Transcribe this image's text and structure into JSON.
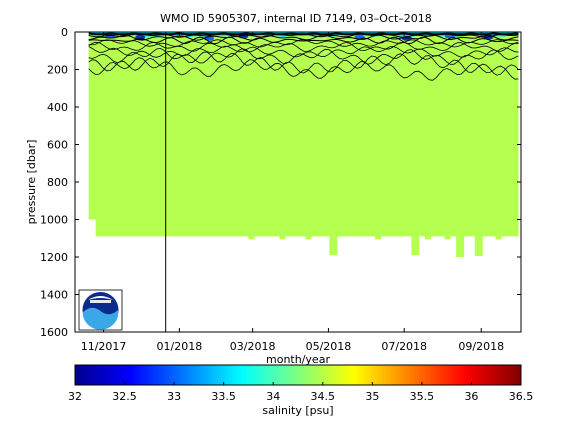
{
  "chart_data": {
    "type": "heatmap",
    "title": "WMO ID 5905307, internal ID 7149, 03–Oct–2018",
    "xlabel": "month/year",
    "ylabel": "pressure [dbar]",
    "x_tick_labels": [
      "11/2017",
      "01/2018",
      "03/2018",
      "05/2018",
      "07/2018",
      "09/2018"
    ],
    "x_tick_dates": [
      "2017-11-01",
      "2018-01-01",
      "2018-03-01",
      "2018-05-01",
      "2018-07-01",
      "2018-09-01"
    ],
    "xlim": [
      "2017-10-09",
      "2018-10-03"
    ],
    "ylim": [
      0,
      1600
    ],
    "y_reversed": true,
    "y_ticks": [
      0,
      200,
      400,
      600,
      800,
      1000,
      1200,
      1400,
      1600
    ],
    "marker_line_date": "2017-12-21",
    "colorbar": {
      "label": "salinity [psu]",
      "range": [
        32,
        36.5
      ],
      "ticks": [
        32,
        32.5,
        33,
        33.5,
        34,
        34.5,
        35,
        35.5,
        36,
        36.5
      ],
      "tick_labels": [
        "32",
        "32.5",
        "33",
        "33.5",
        "34",
        "34.5",
        "35",
        "35.5",
        "36",
        "36.5"
      ],
      "colormap": "jet"
    },
    "fill": {
      "deep_salinity": 34.6,
      "surface_salinity": 33.7,
      "first_profile_date": "2017-10-20",
      "last_profile_date": "2018-10-01",
      "max_profile_depth": 1090,
      "first_profile_depth": 1000,
      "deeper_profiles": [
        {
          "date": "2018-05-05",
          "depth": 1190
        },
        {
          "date": "2018-07-10",
          "depth": 1190
        },
        {
          "date": "2018-08-15",
          "depth": 1200
        },
        {
          "date": "2018-08-30",
          "depth": 1195
        }
      ]
    },
    "colors": {
      "deep_fill": "#b4ff50",
      "surface_fill": "#00e6ff",
      "contour": "#000000"
    }
  }
}
